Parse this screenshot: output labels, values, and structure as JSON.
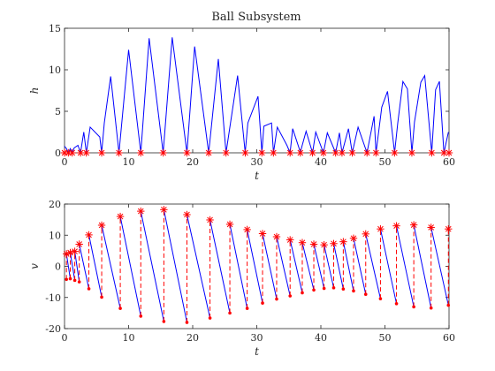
{
  "colors": {
    "line": "#0000ff",
    "marker": "#ff0000",
    "axis": "#262626"
  },
  "chart_data": [
    {
      "type": "line",
      "title": "Ball Subsystem",
      "xlabel": "t",
      "ylabel": "h",
      "xlim": [
        0,
        60
      ],
      "ylim": [
        0,
        15
      ],
      "xticks": [
        0,
        10,
        20,
        30,
        40,
        50,
        60
      ],
      "yticks": [
        0,
        5,
        10,
        15
      ],
      "grid": false,
      "series": [
        {
          "values": [
            [
              0,
              0.8
            ],
            [
              0.3,
              0.5
            ],
            [
              0.6,
              0
            ],
            [
              0.9,
              0.5
            ],
            [
              1.2,
              0
            ],
            [
              1.5,
              0.6
            ],
            [
              2.1,
              0.9
            ],
            [
              2.5,
              0
            ],
            [
              3.0,
              2.5
            ],
            [
              3.4,
              0
            ],
            [
              4.0,
              3.1
            ],
            [
              5.5,
              1.9
            ],
            [
              5.8,
              0
            ],
            [
              6.2,
              3.6
            ],
            [
              7.2,
              9.2
            ],
            [
              8.5,
              0
            ],
            [
              10.0,
              12.4
            ],
            [
              11.9,
              0
            ],
            [
              13.2,
              13.8
            ],
            [
              15.4,
              0
            ],
            [
              16.8,
              13.9
            ],
            [
              19.1,
              0
            ],
            [
              20.3,
              12.8
            ],
            [
              22.5,
              0
            ],
            [
              24.0,
              11.3
            ],
            [
              25.2,
              0
            ],
            [
              27.0,
              9.3
            ],
            [
              28.2,
              0
            ],
            [
              28.6,
              3.6
            ],
            [
              30.2,
              6.8
            ],
            [
              30.8,
              0
            ],
            [
              31.1,
              3.2
            ],
            [
              32.3,
              3.6
            ],
            [
              32.6,
              0
            ],
            [
              33.2,
              3.1
            ],
            [
              34.7,
              0.9
            ],
            [
              35.2,
              0
            ],
            [
              35.6,
              2.9
            ],
            [
              36.8,
              0.1
            ],
            [
              37.7,
              2.6
            ],
            [
              38.7,
              0
            ],
            [
              39.2,
              2.5
            ],
            [
              40.4,
              0
            ],
            [
              41.0,
              2.4
            ],
            [
              42.3,
              0
            ],
            [
              42.9,
              2.4
            ],
            [
              43.3,
              0
            ],
            [
              44.3,
              2.9
            ],
            [
              44.9,
              0
            ],
            [
              45.8,
              3.1
            ],
            [
              47.2,
              0
            ],
            [
              48.3,
              4.4
            ],
            [
              48.6,
              0
            ],
            [
              49.5,
              5.5
            ],
            [
              50.4,
              7.4
            ],
            [
              51.5,
              0
            ],
            [
              52.0,
              3.6
            ],
            [
              52.8,
              8.6
            ],
            [
              53.5,
              7.7
            ],
            [
              54.2,
              0
            ],
            [
              54.6,
              3.7
            ],
            [
              55.6,
              8.5
            ],
            [
              56.2,
              9.3
            ],
            [
              57.3,
              0
            ],
            [
              57.9,
              7.6
            ],
            [
              58.5,
              8.6
            ],
            [
              59.2,
              0
            ],
            [
              59.9,
              2.5
            ]
          ]
        }
      ],
      "markers": [
        [
          0,
          0
        ],
        [
          0.6,
          0
        ],
        [
          1.2,
          0
        ],
        [
          2.5,
          0
        ],
        [
          3.4,
          0
        ],
        [
          5.8,
          0
        ],
        [
          8.5,
          0
        ],
        [
          11.9,
          0
        ],
        [
          15.4,
          0
        ],
        [
          19.1,
          0
        ],
        [
          22.5,
          0
        ],
        [
          25.2,
          0
        ],
        [
          28.2,
          0
        ],
        [
          30.8,
          0
        ],
        [
          32.6,
          0
        ],
        [
          35.2,
          0
        ],
        [
          36.8,
          0
        ],
        [
          38.7,
          0
        ],
        [
          40.4,
          0
        ],
        [
          42.3,
          0
        ],
        [
          43.3,
          0
        ],
        [
          44.9,
          0
        ],
        [
          47.2,
          0
        ],
        [
          48.6,
          0
        ],
        [
          51.5,
          0
        ],
        [
          54.2,
          0
        ],
        [
          57.3,
          0
        ],
        [
          59.2,
          0
        ],
        [
          60,
          0
        ]
      ]
    },
    {
      "type": "line",
      "xlabel": "t",
      "ylabel": "v",
      "xlim": [
        0,
        60
      ],
      "ylim": [
        -20,
        20
      ],
      "xticks": [
        0,
        10,
        20,
        30,
        40,
        50,
        60
      ],
      "yticks": [
        -20,
        -10,
        0,
        10,
        20
      ],
      "grid": false,
      "bounces": [
        {
          "t": 0.3,
          "before": -4.2,
          "after": 4.0
        },
        {
          "t": 0.9,
          "before": -4.0,
          "after": 4.4
        },
        {
          "t": 1.6,
          "before": -4.5,
          "after": 4.8
        },
        {
          "t": 2.3,
          "before": -5.0,
          "after": 7.1
        },
        {
          "t": 3.8,
          "before": -7.2,
          "after": 10.1
        },
        {
          "t": 5.8,
          "before": -9.9,
          "after": 13.2
        },
        {
          "t": 8.7,
          "before": -13.5,
          "after": 16.0
        },
        {
          "t": 11.9,
          "before": -16.0,
          "after": 17.7
        },
        {
          "t": 15.5,
          "before": -17.7,
          "after": 18.2
        },
        {
          "t": 19.1,
          "before": -18.0,
          "after": 16.6
        },
        {
          "t": 22.7,
          "before": -16.6,
          "after": 14.9
        },
        {
          "t": 25.8,
          "before": -15.0,
          "after": 13.5
        },
        {
          "t": 28.5,
          "before": -13.5,
          "after": 11.8
        },
        {
          "t": 30.9,
          "before": -11.8,
          "after": 10.5
        },
        {
          "t": 33.1,
          "before": -10.5,
          "after": 9.5
        },
        {
          "t": 35.2,
          "before": -9.5,
          "after": 8.5
        },
        {
          "t": 37.1,
          "before": -8.5,
          "after": 7.6
        },
        {
          "t": 38.9,
          "before": -7.6,
          "after": 7.1
        },
        {
          "t": 40.5,
          "before": -7.1,
          "after": 6.9
        },
        {
          "t": 42.0,
          "before": -6.9,
          "after": 7.3
        },
        {
          "t": 43.5,
          "before": -7.3,
          "after": 7.9
        },
        {
          "t": 45.1,
          "before": -7.9,
          "after": 9.0
        },
        {
          "t": 47.0,
          "before": -9.0,
          "after": 10.4
        },
        {
          "t": 49.3,
          "before": -10.4,
          "after": 12.0
        },
        {
          "t": 51.8,
          "before": -12.0,
          "after": 13.0
        },
        {
          "t": 54.5,
          "before": -13.0,
          "after": 13.3
        },
        {
          "t": 57.2,
          "before": -13.4,
          "after": 12.5
        },
        {
          "t": 59.9,
          "before": -12.5,
          "after": 12.0
        }
      ]
    }
  ]
}
